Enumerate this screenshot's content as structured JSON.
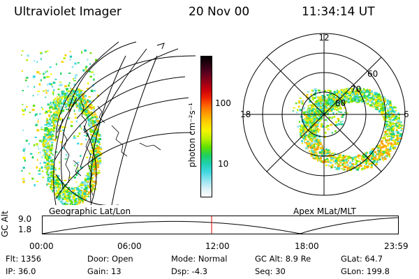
{
  "header": {
    "title": "Ultraviolet Imager",
    "date": "20 Nov 00",
    "time": "11:34:14 UT"
  },
  "colorbar": {
    "label": "photon cm⁻²s⁻¹",
    "tick_100": "100",
    "tick_10": "10",
    "colors": [
      "#000000",
      "#2a0012",
      "#5c0020",
      "#900018",
      "#c8000e",
      "#ee2200",
      "#ff6600",
      "#ffa000",
      "#ffd000",
      "#f4f400",
      "#b8f000",
      "#60e000",
      "#1ed060",
      "#20d0b0",
      "#40d8e0",
      "#90e4f0",
      "#d8f0f8",
      "#ffffff"
    ]
  },
  "left_map": {
    "caption": "Geographic Lat/Lon"
  },
  "right_map": {
    "caption": "Apex MLat/MLT",
    "mlt_labels": {
      "top": "12",
      "left": "18",
      "right": "6"
    },
    "lat_labels": {
      "l60": "60",
      "l70": "70",
      "l80": "80"
    }
  },
  "altitude_plot": {
    "axis_label": "GC Alt",
    "y_top": "9.0",
    "y_bottom": "1.8",
    "x_ticks": [
      "00:00",
      "06:00",
      "12:00",
      "18:00",
      "23:59"
    ],
    "marker_color": "#e00000"
  },
  "info": {
    "row1": {
      "flt": "Flt: 1356",
      "door": "Door: Open",
      "mode": "Mode: Normal",
      "gcalt": "GC Alt: 8.9 Re",
      "glat": "GLat:  64.7"
    },
    "row2": {
      "ip": "IP: 36.0",
      "gain": "Gain: 13",
      "dsp": "Dsp:    -4.3",
      "seq": "Seq: 30",
      "glon": "GLon: 199.8"
    }
  }
}
